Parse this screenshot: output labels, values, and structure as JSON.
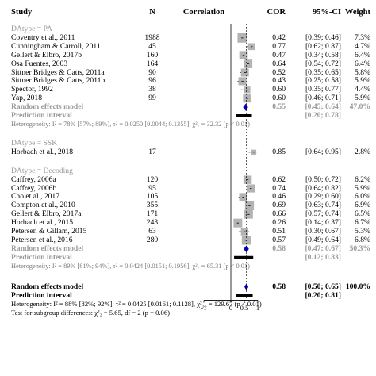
{
  "chart_data": {
    "type": "forest",
    "headers": {
      "study": "Study",
      "n": "N",
      "plot": "Correlation",
      "effect": "COR",
      "ci": "95%-CI",
      "weight": "Weight"
    },
    "xaxis": {
      "ticks": [
        -1,
        0,
        0.5,
        1
      ],
      "tick_labels": [
        "-1",
        "0",
        "0.5",
        "1"
      ],
      "range": [
        -1,
        1
      ]
    },
    "overall_ref": 0.58,
    "groups": [
      {
        "label": "DAtype = PA",
        "studies": [
          {
            "study": "Coventry et al., 2011",
            "n": "1988",
            "cor": "0.42",
            "ci": "[0.39; 0.46]",
            "weight": "7.3%",
            "est": 0.42,
            "lo": 0.39,
            "hi": 0.46,
            "w": 7.3
          },
          {
            "study": "Cunningham & Carroll, 2011",
            "n": "45",
            "cor": "0.77",
            "ci": "[0.62; 0.87]",
            "weight": "4.7%",
            "est": 0.77,
            "lo": 0.62,
            "hi": 0.87,
            "w": 4.7
          },
          {
            "study": "Gellert & Elbro, 2017b",
            "n": "160",
            "cor": "0.47",
            "ci": "[0.34; 0.58]",
            "weight": "6.4%",
            "est": 0.47,
            "lo": 0.34,
            "hi": 0.58,
            "w": 6.4
          },
          {
            "study": "Osa Fuentes, 2003",
            "n": "164",
            "cor": "0.64",
            "ci": "[0.54; 0.72]",
            "weight": "6.4%",
            "est": 0.64,
            "lo": 0.54,
            "hi": 0.72,
            "w": 6.4
          },
          {
            "study": "Sittner Bridges & Catts, 2011a",
            "n": "90",
            "cor": "0.52",
            "ci": "[0.35; 0.65]",
            "weight": "5.8%",
            "est": 0.52,
            "lo": 0.35,
            "hi": 0.65,
            "w": 5.8
          },
          {
            "study": "Sittner Bridges & Catts, 2011b",
            "n": "96",
            "cor": "0.43",
            "ci": "[0.25; 0.58]",
            "weight": "5.9%",
            "est": 0.43,
            "lo": 0.25,
            "hi": 0.58,
            "w": 5.9
          },
          {
            "study": "Spector, 1992",
            "n": "38",
            "cor": "0.60",
            "ci": "[0.35; 0.77]",
            "weight": "4.4%",
            "est": 0.6,
            "lo": 0.35,
            "hi": 0.77,
            "w": 4.4
          },
          {
            "study": "Yap, 2018",
            "n": "99",
            "cor": "0.60",
            "ci": "[0.46; 0.71]",
            "weight": "5.9%",
            "est": 0.6,
            "lo": 0.46,
            "hi": 0.71,
            "w": 5.9
          }
        ],
        "rem": {
          "label": "Random effects model",
          "cor": "0.55",
          "ci": "[0.45; 0.64]",
          "weight": "47.0%",
          "est": 0.55,
          "lo": 0.45,
          "hi": 0.64
        },
        "pi": {
          "label": "Prediction interval",
          "ci": "[0.20; 0.78]",
          "lo": 0.2,
          "hi": 0.78
        },
        "het": "Heterogeneity: I² = 78% [57%; 89%], τ² = 0.0250 [0.0044; 0.1355], χ²₇ = 32.32 (p < 0.01)"
      },
      {
        "label": "DAtype = SSK",
        "studies": [
          {
            "study": "Horbach et al., 2018",
            "n": "17",
            "cor": "0.85",
            "ci": "[0.64; 0.95]",
            "weight": "2.8%",
            "est": 0.85,
            "lo": 0.64,
            "hi": 0.95,
            "w": 2.8
          }
        ]
      },
      {
        "label": "DAtype = Decoding",
        "studies": [
          {
            "study": "Caffrey, 2006a",
            "n": "120",
            "cor": "0.62",
            "ci": "[0.50; 0.72]",
            "weight": "6.2%",
            "est": 0.62,
            "lo": 0.5,
            "hi": 0.72,
            "w": 6.2
          },
          {
            "study": "Caffrey, 2006b",
            "n": "95",
            "cor": "0.74",
            "ci": "[0.64; 0.82]",
            "weight": "5.9%",
            "est": 0.74,
            "lo": 0.64,
            "hi": 0.82,
            "w": 5.9
          },
          {
            "study": "Cho et al., 2017",
            "n": "105",
            "cor": "0.46",
            "ci": "[0.29; 0.60]",
            "weight": "6.0%",
            "est": 0.46,
            "lo": 0.29,
            "hi": 0.6,
            "w": 6.0
          },
          {
            "study": "Compton et al., 2010",
            "n": "355",
            "cor": "0.69",
            "ci": "[0.63; 0.74]",
            "weight": "6.9%",
            "est": 0.69,
            "lo": 0.63,
            "hi": 0.74,
            "w": 6.9
          },
          {
            "study": "Gellert & Elbro, 2017a",
            "n": "171",
            "cor": "0.66",
            "ci": "[0.57; 0.74]",
            "weight": "6.5%",
            "est": 0.66,
            "lo": 0.57,
            "hi": 0.74,
            "w": 6.5
          },
          {
            "study": "Horbach et al., 2015",
            "n": "243",
            "cor": "0.26",
            "ci": "[0.14; 0.37]",
            "weight": "6.7%",
            "est": 0.26,
            "lo": 0.14,
            "hi": 0.37,
            "w": 6.7
          },
          {
            "study": "Petersen & Gillam, 2015",
            "n": "63",
            "cor": "0.51",
            "ci": "[0.30; 0.67]",
            "weight": "5.3%",
            "est": 0.51,
            "lo": 0.3,
            "hi": 0.67,
            "w": 5.3
          },
          {
            "study": "Petersen et al., 2016",
            "n": "280",
            "cor": "0.57",
            "ci": "[0.49; 0.64]",
            "weight": "6.8%",
            "est": 0.57,
            "lo": 0.49,
            "hi": 0.64,
            "w": 6.8
          }
        ],
        "rem": {
          "label": "Random effects model",
          "cor": "0.58",
          "ci": "[0.47; 0.67]",
          "weight": "50.3%",
          "est": 0.58,
          "lo": 0.47,
          "hi": 0.67
        },
        "pi": {
          "label": "Prediction interval",
          "ci": "[0.12; 0.83]",
          "lo": 0.12,
          "hi": 0.83
        },
        "het": "Heterogeneity: I² = 89% [81%; 94%], τ² = 0.0424 [0.0151; 0.1956], χ²₇ = 65.31 (p < 0.01)"
      }
    ],
    "overall": {
      "rem": {
        "label": "Random effects model",
        "cor": "0.58",
        "ci": "[0.50; 0.65]",
        "weight": "100.0%",
        "est": 0.58,
        "lo": 0.5,
        "hi": 0.65
      },
      "pi": {
        "label": "Prediction interval",
        "ci": "[0.20; 0.81]",
        "lo": 0.2,
        "hi": 0.81
      },
      "het": "Heterogeneity: I² = 88% [82%; 92%], τ² = 0.0425 [0.0161; 0.1128], χ²₁₆ = 129.67 (p < 0.01)",
      "subgroup": "Test for subgroup differences: χ²₂ = 5.65, df = 2 (p = 0.06)"
    },
    "colors": {
      "diamond": "#0000cc",
      "box": "#b3b3b3",
      "gray_text": "#9a9a9a"
    },
    "dashes": "vertical dashed reference line at overall estimate"
  }
}
